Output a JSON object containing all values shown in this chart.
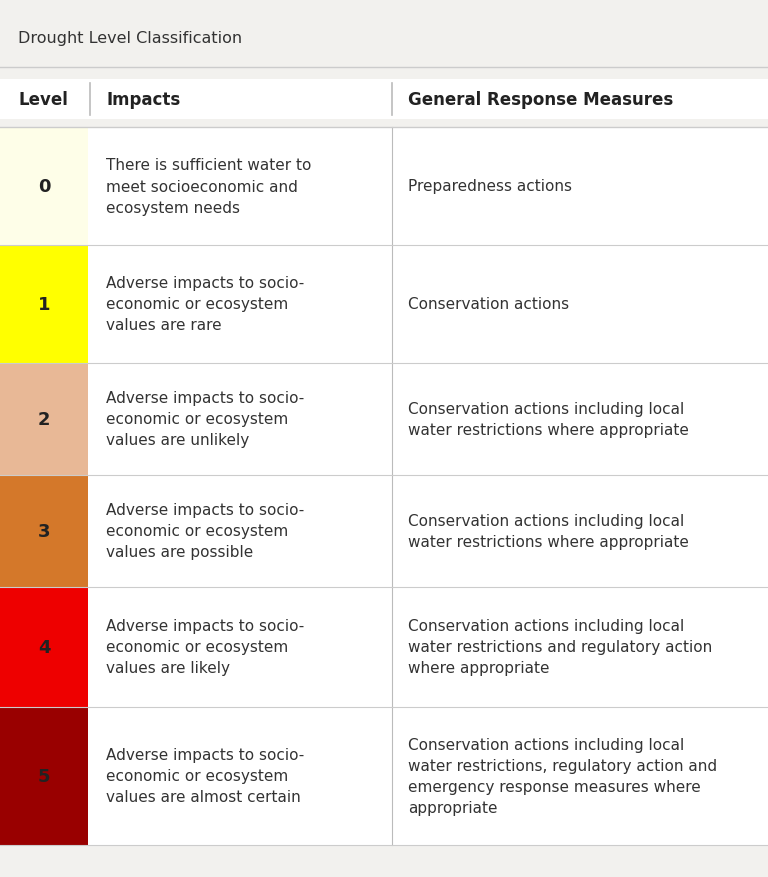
{
  "title": "Drought Level Classification",
  "title_fontsize": 11.5,
  "header": [
    "Level",
    "Impacts",
    "General Response Measures"
  ],
  "header_fontsize": 12,
  "rows": [
    {
      "level": "0",
      "level_color": "#FEFEE8",
      "impact": "There is sufficient water to\nmeet socioeconomic and\necosystem needs",
      "response": "Preparedness actions"
    },
    {
      "level": "1",
      "level_color": "#FFFF00",
      "impact": "Adverse impacts to socio-\neconomic or ecosystem\nvalues are rare",
      "response": "Conservation actions"
    },
    {
      "level": "2",
      "level_color": "#E8B896",
      "impact": "Adverse impacts to socio-\neconomic or ecosystem\nvalues are unlikely",
      "response": "Conservation actions including local\nwater restrictions where appropriate"
    },
    {
      "level": "3",
      "level_color": "#D4782A",
      "impact": "Adverse impacts to socio-\neconomic or ecosystem\nvalues are possible",
      "response": "Conservation actions including local\nwater restrictions where appropriate"
    },
    {
      "level": "4",
      "level_color": "#EE0000",
      "impact": "Adverse impacts to socio-\neconomic or ecosystem\nvalues are likely",
      "response": "Conservation actions including local\nwater restrictions and regulatory action\nwhere appropriate"
    },
    {
      "level": "5",
      "level_color": "#990000",
      "impact": "Adverse impacts to socio-\neconomic or ecosystem\nvalues are almost certain",
      "response": "Conservation actions including local\nwater restrictions, regulatory action and\nemergency response measures where\nappropriate"
    }
  ],
  "bg_color": "#F2F1EE",
  "row_bg_color": "#FFFFFF",
  "separator_color": "#CCCCCC",
  "col_divider_color": "#BBBBBB",
  "text_color": "#333333",
  "header_color": "#222222",
  "row_fontsize": 11,
  "level_fontsize": 13
}
